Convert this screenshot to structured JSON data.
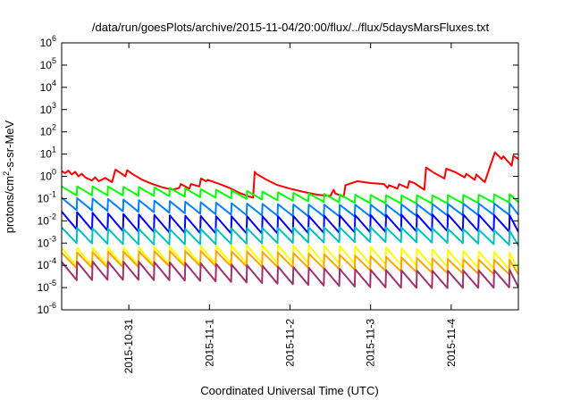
{
  "chart_data": {
    "type": "line",
    "title": "/data/run/goesPlots/archive/2015-11-04/20:00/flux/../flux/5daysMarsFluxes.txt",
    "xlabel": "Coordinated Universal Time (UTC)",
    "ylabel": "protons/cm²-s-sr-MeV",
    "ylabel_parts": {
      "pre": "protons/cm",
      "sup": "2",
      "post": "-s-sr-MeV"
    },
    "yscale": "log",
    "ylim": [
      1e-06,
      1000000.0
    ],
    "y_ticks": [
      {
        "base": "10",
        "exp": "-6",
        "value": 1e-06
      },
      {
        "base": "10",
        "exp": "-5",
        "value": 1e-05
      },
      {
        "base": "10",
        "exp": "-4",
        "value": 0.0001
      },
      {
        "base": "10",
        "exp": "-3",
        "value": 0.001
      },
      {
        "base": "10",
        "exp": "-2",
        "value": 0.01
      },
      {
        "base": "10",
        "exp": "-1",
        "value": 0.1
      },
      {
        "base": "10",
        "exp": "0",
        "value": 1
      },
      {
        "base": "10",
        "exp": "1",
        "value": 10
      },
      {
        "base": "10",
        "exp": "2",
        "value": 100
      },
      {
        "base": "10",
        "exp": "3",
        "value": 1000
      },
      {
        "base": "10",
        "exp": "4",
        "value": 10000
      },
      {
        "base": "10",
        "exp": "5",
        "value": 100000
      },
      {
        "base": "10",
        "exp": "6",
        "value": 1000000
      }
    ],
    "xlim": [
      "2015-10-30T04:00",
      "2015-11-04T20:00"
    ],
    "x_ticks": [
      {
        "label": "2015-10-31",
        "value": "2015-10-31T00:00"
      },
      {
        "label": "2015-11-1",
        "value": "2015-11-01T00:00"
      },
      {
        "label": "2015-11-2",
        "value": "2015-11-02T00:00"
      },
      {
        "label": "2015-11-3",
        "value": "2015-11-03T00:00"
      },
      {
        "label": "2015-11-4",
        "value": "2015-11-04T00:00"
      }
    ],
    "grid": false,
    "series": [
      {
        "color": "#ff0000",
        "x": [
          "2015-10-30T04:00",
          "2015-10-30T05:00",
          "2015-10-30T06:00",
          "2015-10-30T07:00",
          "2015-10-30T08:00",
          "2015-10-30T09:00",
          "2015-10-30T10:00",
          "2015-10-30T11:00",
          "2015-10-30T13:00",
          "2015-10-30T14:00",
          "2015-10-30T15:00",
          "2015-10-30T17:00",
          "2015-10-30T19:00",
          "2015-10-30T20:00",
          "2015-10-30T21:00",
          "2015-10-30T23:00",
          "2015-10-30T23:30",
          "2015-10-31T01:00",
          "2015-10-31T04:00",
          "2015-10-31T07:00",
          "2015-10-31T10:00",
          "2015-10-31T13:00",
          "2015-10-31T15:00",
          "2015-10-31T15:30",
          "2015-10-31T18:00",
          "2015-10-31T18:30",
          "2015-10-31T21:00",
          "2015-10-31T21:30",
          "2015-10-31T23:00",
          "2015-10-31T23:30",
          "2015-11-01T03:00",
          "2015-11-01T06:00",
          "2015-11-01T09:00",
          "2015-11-01T12:00",
          "2015-11-01T13:00",
          "2015-11-01T13:30",
          "2015-11-01T14:00",
          "2015-11-01T17:00",
          "2015-11-01T20:00",
          "2015-11-02T00:00",
          "2015-11-02T04:00",
          "2015-11-02T08:00",
          "2015-11-02T12:00",
          "2015-11-02T13:00",
          "2015-11-02T13:30",
          "2015-11-02T16:00",
          "2015-11-02T16:30",
          "2015-11-02T20:00",
          "2015-11-03T00:00",
          "2015-11-03T04:00",
          "2015-11-03T05:00",
          "2015-11-03T05:30",
          "2015-11-03T08:00",
          "2015-11-03T08:30",
          "2015-11-03T11:00",
          "2015-11-03T11:30",
          "2015-11-03T13:00",
          "2015-11-03T16:00",
          "2015-11-03T16:30",
          "2015-11-03T19:00",
          "2015-11-03T22:00",
          "2015-11-03T22:30",
          "2015-11-04T01:00",
          "2015-11-04T04:00",
          "2015-11-04T04:30",
          "2015-11-04T07:00",
          "2015-11-04T07:30",
          "2015-11-04T10:00",
          "2015-11-04T13:00",
          "2015-11-04T15:00",
          "2015-11-04T15:30",
          "2015-11-04T18:00",
          "2015-11-04T18:30",
          "2015-11-04T20:00"
        ],
        "values": [
          1.7,
          1.4,
          1.8,
          1.2,
          1.6,
          1.0,
          1.3,
          0.9,
          0.65,
          0.9,
          0.6,
          0.85,
          0.55,
          2.0,
          1.6,
          1.0,
          1.9,
          1.3,
          0.7,
          0.45,
          0.32,
          0.25,
          0.3,
          0.45,
          0.28,
          0.45,
          0.35,
          0.8,
          0.6,
          0.7,
          0.45,
          0.3,
          0.18,
          0.12,
          0.11,
          1.6,
          1.3,
          0.7,
          0.42,
          0.28,
          0.2,
          0.15,
          0.13,
          0.25,
          0.17,
          0.12,
          0.4,
          0.6,
          0.5,
          0.45,
          0.3,
          0.4,
          0.28,
          0.45,
          0.3,
          0.6,
          0.5,
          0.25,
          2.5,
          1.4,
          0.8,
          2.2,
          1.6,
          0.9,
          1.3,
          0.7,
          1.2,
          0.55,
          12.0,
          6.0,
          8.0,
          3.0,
          8.5,
          6.0
        ]
      },
      {
        "color": "#00ff00",
        "decay": [
          0.28,
          0.11
        ],
        "trend": 0.4,
        "period_h": 4.6
      },
      {
        "color": "#0080ff",
        "decay": [
          0.09,
          0.025
        ],
        "trend": 0.3,
        "period_h": 4.6
      },
      {
        "color": "#0000ff",
        "decay": [
          0.025,
          0.004
        ],
        "trend": 0.35,
        "period_h": 4.6
      },
      {
        "color": "#00c0c0",
        "decay": [
          0.006,
          0.0012
        ],
        "trend": 0.35,
        "period_h": 4.6
      },
      {
        "color": "#ffff00",
        "decay": [
          0.0008,
          0.00012
        ],
        "trend": 0.4,
        "period_h": 4.6
      },
      {
        "color": "#ffa500",
        "decay": [
          0.0004,
          8e-05
        ],
        "trend": 0.4,
        "period_h": 4.6
      },
      {
        "color": "#a0306e",
        "decay": [
          0.00012,
          1.8e-05
        ],
        "trend": 0.4,
        "period_h": 4.6
      }
    ]
  }
}
